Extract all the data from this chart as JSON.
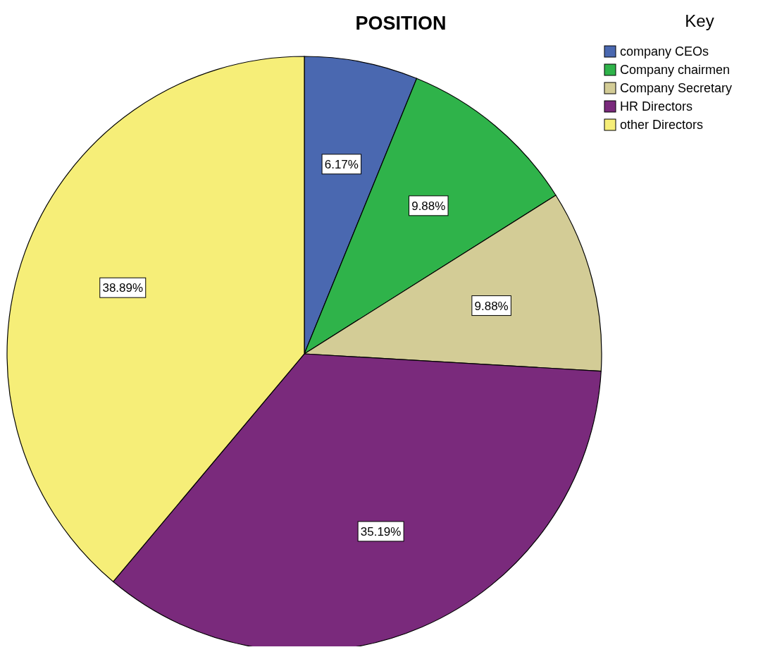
{
  "chart_data": {
    "type": "pie",
    "title": "POSITION",
    "legend_title": "Key",
    "categories": [
      "company CEOs",
      "Company chairmen",
      "Company Secretary",
      "HR Directors",
      "other Directors"
    ],
    "values": [
      6.17,
      9.88,
      9.88,
      35.19,
      38.89
    ],
    "colors": [
      "#4a68b0",
      "#2fb34a",
      "#d3cc96",
      "#7a2a7c",
      "#f6ee78"
    ],
    "value_labels": [
      "6.17%",
      "9.88%",
      "9.88%",
      "35.19%",
      "38.89%"
    ],
    "legend": "top right"
  }
}
